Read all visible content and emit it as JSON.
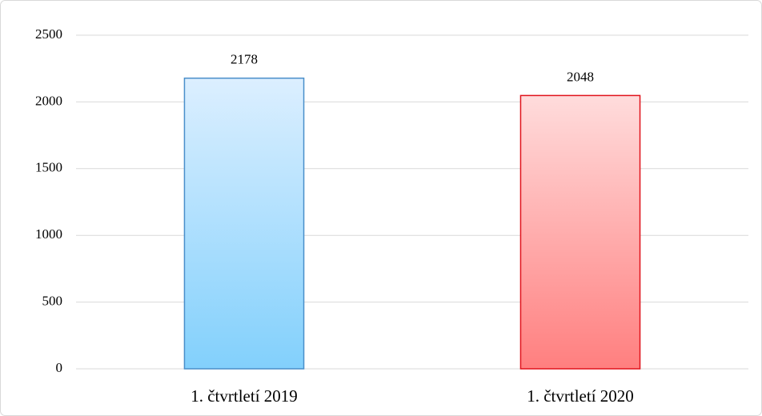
{
  "chart_data": {
    "type": "bar",
    "categories": [
      "1. čtvrtletí 2019",
      "1. čtvrtletí 2020"
    ],
    "values": [
      2178,
      2048
    ],
    "colors": [
      "#4a8fca",
      "#e0121b"
    ],
    "ylim": [
      0,
      2500
    ],
    "yticks": [
      0,
      500,
      1000,
      1500,
      2000,
      2500
    ],
    "grid": true
  }
}
